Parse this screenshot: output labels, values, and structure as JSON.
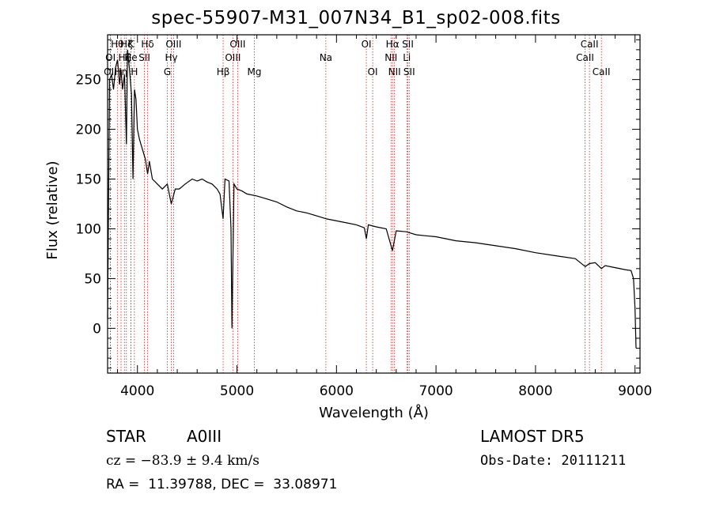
{
  "header": {
    "title": "spec-55907-M31_007N34_B1_sp02-008.fits"
  },
  "chart_data": {
    "type": "line",
    "title": "spec-55907-M31_007N34_B1_sp02-008.fits",
    "xlabel": "Wavelength (Å)",
    "ylabel": "Flux (relative)",
    "xlim": [
      3700,
      9050
    ],
    "ylim": [
      -45,
      295
    ],
    "x_ticks": [
      4000,
      5000,
      6000,
      7000,
      8000,
      9000
    ],
    "y_ticks": [
      0,
      50,
      100,
      150,
      200,
      250
    ],
    "grid": false,
    "series": [
      {
        "x": [
          3700,
          3720,
          3740,
          3760,
          3780,
          3800,
          3820,
          3835,
          3850,
          3870,
          3889,
          3900,
          3920,
          3940,
          3955,
          3970,
          3985,
          4000,
          4020,
          4050,
          4080,
          4102,
          4120,
          4150,
          4200,
          4250,
          4300,
          4340,
          4380,
          4420,
          4480,
          4550,
          4600,
          4650,
          4700,
          4750,
          4800,
          4830,
          4861,
          4880,
          4920,
          4940,
          4950,
          4970,
          5000,
          5050,
          5100,
          5200,
          5300,
          5400,
          5500,
          5600,
          5700,
          5800,
          5900,
          6000,
          6100,
          6200,
          6280,
          6300,
          6320,
          6400,
          6500,
          6563,
          6600,
          6700,
          6800,
          6900,
          7000,
          7200,
          7400,
          7600,
          7800,
          8000,
          8200,
          8400,
          8500,
          8542,
          8600,
          8662,
          8700,
          8800,
          8900,
          8960,
          8985,
          9000,
          9010
        ],
        "y": [
          10,
          250,
          255,
          240,
          262,
          270,
          245,
          260,
          240,
          255,
          185,
          280,
          260,
          235,
          150,
          240,
          230,
          200,
          190,
          180,
          170,
          155,
          168,
          150,
          145,
          140,
          145,
          125,
          140,
          140,
          145,
          150,
          148,
          150,
          147,
          145,
          140,
          135,
          110,
          150,
          148,
          100,
          0,
          145,
          140,
          138,
          135,
          133,
          130,
          127,
          122,
          118,
          116,
          113,
          110,
          108,
          106,
          104,
          101,
          90,
          104,
          102,
          100,
          78,
          98,
          97,
          94,
          93,
          92,
          88,
          86,
          83,
          80,
          76,
          73,
          70,
          62,
          65,
          66,
          60,
          63,
          61,
          59,
          58,
          50,
          20,
          -20
        ]
      }
    ],
    "lines": [
      {
        "wl": 3727,
        "label": "OII",
        "row": 2
      },
      {
        "wl": 3729,
        "label": "OI",
        "row": 1
      },
      {
        "wl": 3798,
        "label": "Hθ",
        "row": 0
      },
      {
        "wl": 3835,
        "label": "Hη",
        "row": 2
      },
      {
        "wl": 3869,
        "label": "Hζ",
        "row": 1
      },
      {
        "wl": 3889,
        "label": "Hζ",
        "row": 0
      },
      {
        "wl": 3934,
        "label": "K",
        "row": 0
      },
      {
        "wl": 3934,
        "label": "He",
        "row": 1
      },
      {
        "wl": 3969,
        "label": "H",
        "row": 2
      },
      {
        "wl": 4070,
        "label": "SII",
        "row": 1
      },
      {
        "wl": 4102,
        "label": "Hδ",
        "row": 0
      },
      {
        "wl": 4300,
        "label": "G",
        "row": 2
      },
      {
        "wl": 4340,
        "label": "Hγ",
        "row": 1
      },
      {
        "wl": 4363,
        "label": "OIII",
        "row": 0
      },
      {
        "wl": 4861,
        "label": "Hβ",
        "row": 2
      },
      {
        "wl": 4959,
        "label": "OIII",
        "row": 1
      },
      {
        "wl": 5007,
        "label": "OIII",
        "row": 0
      },
      {
        "wl": 5175,
        "label": "Mg",
        "row": 2
      },
      {
        "wl": 5893,
        "label": "Na",
        "row": 1
      },
      {
        "wl": 6300,
        "label": "OI",
        "row": 0
      },
      {
        "wl": 6364,
        "label": "OI",
        "row": 2
      },
      {
        "wl": 6548,
        "label": "NII",
        "row": 1
      },
      {
        "wl": 6563,
        "label": "Hα",
        "row": 0
      },
      {
        "wl": 6583,
        "label": "NII",
        "row": 2
      },
      {
        "wl": 6707,
        "label": "Li",
        "row": 1
      },
      {
        "wl": 6717,
        "label": "SII",
        "row": 0
      },
      {
        "wl": 6731,
        "label": "SII",
        "row": 2
      },
      {
        "wl": 8498,
        "label": "CaII",
        "row": 1
      },
      {
        "wl": 8542,
        "label": "CaII",
        "row": 0
      },
      {
        "wl": 8662,
        "label": "CaII",
        "row": 2
      }
    ]
  },
  "info": {
    "class": "STAR",
    "subclass": "A0III",
    "cz": "cz = −83.9 ± 9.4 km/s",
    "coords": "RA =  11.39788, DEC =  33.08971",
    "survey": "LAMOST DR5",
    "obs_date": "Obs-Date: 20111211"
  },
  "colors": {
    "axis": "#000000",
    "spectrum": "#000000",
    "line_marker": "#cc2222"
  }
}
